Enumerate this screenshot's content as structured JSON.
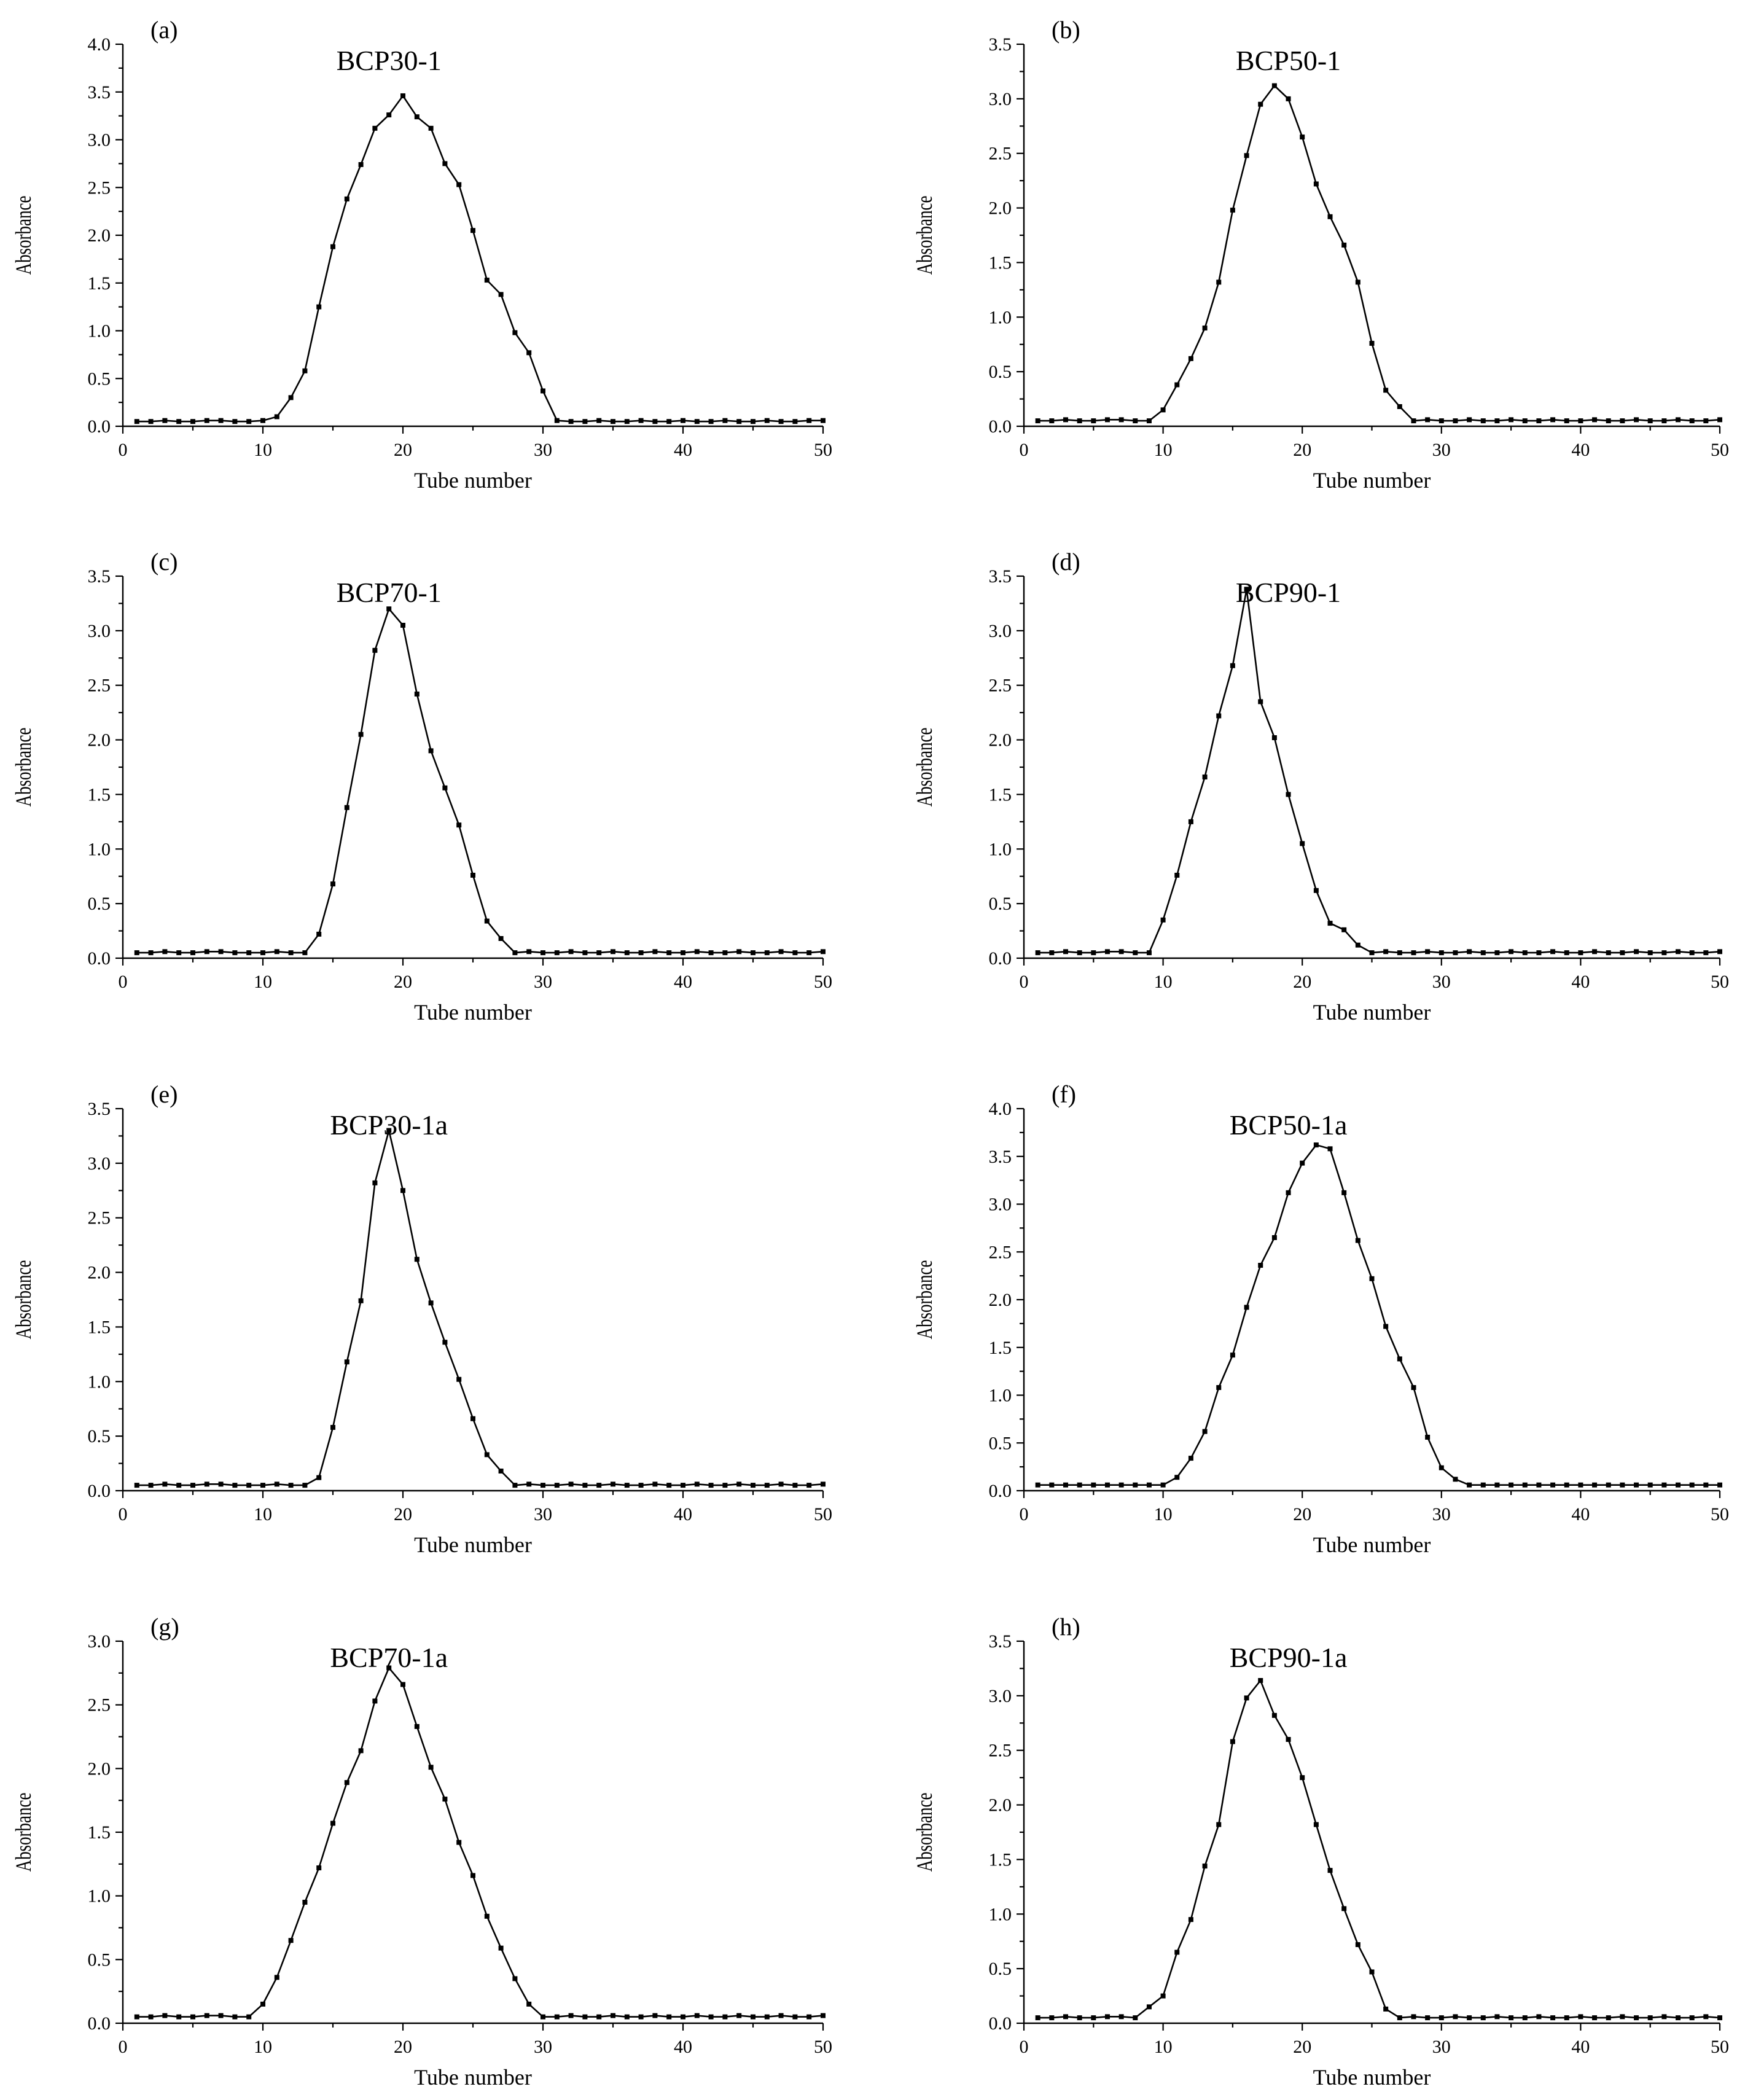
{
  "chart_data": [
    {
      "type": "line",
      "panel": "(a)",
      "title": "BCP30-1",
      "xlabel": "Tube number",
      "ylabel": "Absorbance",
      "xlim": [
        0,
        50
      ],
      "ylim": [
        0,
        4.0
      ],
      "xticks": [
        0,
        10,
        20,
        30,
        40,
        50
      ],
      "yticks": [
        "0.0",
        "0.5",
        "1.0",
        "1.5",
        "2.0",
        "2.5",
        "3.0",
        "3.5",
        "4.0"
      ],
      "x": [
        1,
        2,
        3,
        4,
        5,
        6,
        7,
        8,
        9,
        10,
        11,
        12,
        13,
        14,
        15,
        16,
        17,
        18,
        19,
        20,
        21,
        22,
        23,
        24,
        25,
        26,
        27,
        28,
        29,
        30,
        31,
        32,
        33,
        34,
        35,
        36,
        37,
        38,
        39,
        40,
        41,
        42,
        43,
        44,
        45,
        46,
        47,
        48,
        49,
        50
      ],
      "y": [
        0.05,
        0.05,
        0.06,
        0.05,
        0.05,
        0.06,
        0.06,
        0.05,
        0.05,
        0.06,
        0.1,
        0.3,
        0.58,
        1.25,
        1.88,
        2.38,
        2.74,
        3.12,
        3.26,
        3.46,
        3.24,
        3.12,
        2.75,
        2.53,
        2.05,
        1.53,
        1.38,
        0.98,
        0.77,
        0.37,
        0.06,
        0.05,
        0.05,
        0.06,
        0.05,
        0.05,
        0.06,
        0.05,
        0.05,
        0.06,
        0.05,
        0.05,
        0.06,
        0.05,
        0.05,
        0.06,
        0.05,
        0.05,
        0.06,
        0.06
      ]
    },
    {
      "type": "line",
      "panel": "(b)",
      "title": "BCP50-1",
      "xlabel": "Tube number",
      "ylabel": "Absorbance",
      "xlim": [
        0,
        50
      ],
      "ylim": [
        0,
        3.5
      ],
      "xticks": [
        0,
        10,
        20,
        30,
        40,
        50
      ],
      "yticks": [
        "0.0",
        "0.5",
        "1.0",
        "1.5",
        "2.0",
        "2.5",
        "3.0",
        "3.5"
      ],
      "x": [
        1,
        2,
        3,
        4,
        5,
        6,
        7,
        8,
        9,
        10,
        11,
        12,
        13,
        14,
        15,
        16,
        17,
        18,
        19,
        20,
        21,
        22,
        23,
        24,
        25,
        26,
        27,
        28,
        29,
        30,
        31,
        32,
        33,
        34,
        35,
        36,
        37,
        38,
        39,
        40,
        41,
        42,
        43,
        44,
        45,
        46,
        47,
        48,
        49,
        50
      ],
      "y": [
        0.05,
        0.05,
        0.06,
        0.05,
        0.05,
        0.06,
        0.06,
        0.05,
        0.05,
        0.15,
        0.38,
        0.62,
        0.9,
        1.32,
        1.98,
        2.48,
        2.95,
        3.12,
        3.0,
        2.65,
        2.22,
        1.92,
        1.66,
        1.32,
        0.76,
        0.33,
        0.18,
        0.05,
        0.06,
        0.05,
        0.05,
        0.06,
        0.05,
        0.05,
        0.06,
        0.05,
        0.05,
        0.06,
        0.05,
        0.05,
        0.06,
        0.05,
        0.05,
        0.06,
        0.05,
        0.05,
        0.06,
        0.05,
        0.05,
        0.06
      ]
    },
    {
      "type": "line",
      "panel": "(c)",
      "title": "BCP70-1",
      "xlabel": "Tube number",
      "ylabel": "Absorbance",
      "xlim": [
        0,
        50
      ],
      "ylim": [
        0,
        3.5
      ],
      "xticks": [
        0,
        10,
        20,
        30,
        40,
        50
      ],
      "yticks": [
        "0.0",
        "0.5",
        "1.0",
        "1.5",
        "2.0",
        "2.5",
        "3.0",
        "3.5"
      ],
      "x": [
        1,
        2,
        3,
        4,
        5,
        6,
        7,
        8,
        9,
        10,
        11,
        12,
        13,
        14,
        15,
        16,
        17,
        18,
        19,
        20,
        21,
        22,
        23,
        24,
        25,
        26,
        27,
        28,
        29,
        30,
        31,
        32,
        33,
        34,
        35,
        36,
        37,
        38,
        39,
        40,
        41,
        42,
        43,
        44,
        45,
        46,
        47,
        48,
        49,
        50
      ],
      "y": [
        0.05,
        0.05,
        0.06,
        0.05,
        0.05,
        0.06,
        0.06,
        0.05,
        0.05,
        0.05,
        0.06,
        0.05,
        0.05,
        0.22,
        0.68,
        1.38,
        2.05,
        2.82,
        3.2,
        3.05,
        2.42,
        1.9,
        1.56,
        1.22,
        0.76,
        0.34,
        0.18,
        0.05,
        0.06,
        0.05,
        0.05,
        0.06,
        0.05,
        0.05,
        0.06,
        0.05,
        0.05,
        0.06,
        0.05,
        0.05,
        0.06,
        0.05,
        0.05,
        0.06,
        0.05,
        0.05,
        0.06,
        0.05,
        0.05,
        0.06
      ]
    },
    {
      "type": "line",
      "panel": "(d)",
      "title": "BCP90-1",
      "xlabel": "Tube number",
      "ylabel": "Absorbance",
      "xlim": [
        0,
        50
      ],
      "ylim": [
        0,
        3.5
      ],
      "xticks": [
        0,
        10,
        20,
        30,
        40,
        50
      ],
      "yticks": [
        "0.0",
        "0.5",
        "1.0",
        "1.5",
        "2.0",
        "2.5",
        "3.0",
        "3.5"
      ],
      "x": [
        1,
        2,
        3,
        4,
        5,
        6,
        7,
        8,
        9,
        10,
        11,
        12,
        13,
        14,
        15,
        16,
        17,
        18,
        19,
        20,
        21,
        22,
        23,
        24,
        25,
        26,
        27,
        28,
        29,
        30,
        31,
        32,
        33,
        34,
        35,
        36,
        37,
        38,
        39,
        40,
        41,
        42,
        43,
        44,
        45,
        46,
        47,
        48,
        49,
        50
      ],
      "y": [
        0.05,
        0.05,
        0.06,
        0.05,
        0.05,
        0.06,
        0.06,
        0.05,
        0.05,
        0.35,
        0.76,
        1.25,
        1.66,
        2.22,
        2.68,
        3.38,
        2.35,
        2.02,
        1.5,
        1.05,
        0.62,
        0.32,
        0.26,
        0.12,
        0.05,
        0.06,
        0.05,
        0.05,
        0.06,
        0.05,
        0.05,
        0.06,
        0.05,
        0.05,
        0.06,
        0.05,
        0.05,
        0.06,
        0.05,
        0.05,
        0.06,
        0.05,
        0.05,
        0.06,
        0.05,
        0.05,
        0.06,
        0.05,
        0.05,
        0.06
      ]
    },
    {
      "type": "line",
      "panel": "(e)",
      "title": "BCP30-1a",
      "xlabel": "Tube number",
      "ylabel": "Absorbance",
      "xlim": [
        0,
        50
      ],
      "ylim": [
        0,
        3.5
      ],
      "xticks": [
        0,
        10,
        20,
        30,
        40,
        50
      ],
      "yticks": [
        "0.0",
        "0.5",
        "1.0",
        "1.5",
        "2.0",
        "2.5",
        "3.0",
        "3.5"
      ],
      "x": [
        1,
        2,
        3,
        4,
        5,
        6,
        7,
        8,
        9,
        10,
        11,
        12,
        13,
        14,
        15,
        16,
        17,
        18,
        19,
        20,
        21,
        22,
        23,
        24,
        25,
        26,
        27,
        28,
        29,
        30,
        31,
        32,
        33,
        34,
        35,
        36,
        37,
        38,
        39,
        40,
        41,
        42,
        43,
        44,
        45,
        46,
        47,
        48,
        49,
        50
      ],
      "y": [
        0.05,
        0.05,
        0.06,
        0.05,
        0.05,
        0.06,
        0.06,
        0.05,
        0.05,
        0.05,
        0.06,
        0.05,
        0.05,
        0.12,
        0.58,
        1.18,
        1.74,
        2.82,
        3.3,
        2.75,
        2.12,
        1.72,
        1.36,
        1.02,
        0.66,
        0.33,
        0.18,
        0.05,
        0.06,
        0.05,
        0.05,
        0.06,
        0.05,
        0.05,
        0.06,
        0.05,
        0.05,
        0.06,
        0.05,
        0.05,
        0.06,
        0.05,
        0.05,
        0.06,
        0.05,
        0.05,
        0.06,
        0.05,
        0.05,
        0.06
      ]
    },
    {
      "type": "line",
      "panel": "(f)",
      "title": "BCP50-1a",
      "xlabel": "Tube number",
      "ylabel": "Absorbance",
      "xlim": [
        0,
        50
      ],
      "ylim": [
        0,
        4.0
      ],
      "xticks": [
        0,
        10,
        20,
        30,
        40,
        50
      ],
      "yticks": [
        "0.0",
        "0.5",
        "1.0",
        "1.5",
        "2.0",
        "2.5",
        "3.0",
        "3.5",
        "4.0"
      ],
      "x": [
        1,
        2,
        3,
        4,
        5,
        6,
        7,
        8,
        9,
        10,
        11,
        12,
        13,
        14,
        15,
        16,
        17,
        18,
        19,
        20,
        21,
        22,
        23,
        24,
        25,
        26,
        27,
        28,
        29,
        30,
        31,
        32,
        33,
        34,
        35,
        36,
        37,
        38,
        39,
        40,
        41,
        42,
        43,
        44,
        45,
        46,
        47,
        48,
        49,
        50
      ],
      "y": [
        0.06,
        0.06,
        0.06,
        0.06,
        0.06,
        0.06,
        0.06,
        0.06,
        0.06,
        0.06,
        0.14,
        0.34,
        0.62,
        1.08,
        1.42,
        1.92,
        2.36,
        2.65,
        3.12,
        3.43,
        3.62,
        3.58,
        3.12,
        2.62,
        2.22,
        1.72,
        1.38,
        1.08,
        0.56,
        0.24,
        0.12,
        0.06,
        0.06,
        0.06,
        0.06,
        0.06,
        0.06,
        0.06,
        0.06,
        0.06,
        0.06,
        0.06,
        0.06,
        0.06,
        0.06,
        0.06,
        0.06,
        0.06,
        0.06,
        0.06
      ]
    },
    {
      "type": "line",
      "panel": "(g)",
      "title": "BCP70-1a",
      "xlabel": "Tube number",
      "ylabel": "Absorbance",
      "xlim": [
        0,
        50
      ],
      "ylim": [
        0,
        3.0
      ],
      "xticks": [
        0,
        10,
        20,
        30,
        40,
        50
      ],
      "yticks": [
        "0.0",
        "0.5",
        "1.0",
        "1.5",
        "2.0",
        "2.5",
        "3.0"
      ],
      "x": [
        1,
        2,
        3,
        4,
        5,
        6,
        7,
        8,
        9,
        10,
        11,
        12,
        13,
        14,
        15,
        16,
        17,
        18,
        19,
        20,
        21,
        22,
        23,
        24,
        25,
        26,
        27,
        28,
        29,
        30,
        31,
        32,
        33,
        34,
        35,
        36,
        37,
        38,
        39,
        40,
        41,
        42,
        43,
        44,
        45,
        46,
        47,
        48,
        49,
        50
      ],
      "y": [
        0.05,
        0.05,
        0.06,
        0.05,
        0.05,
        0.06,
        0.06,
        0.05,
        0.05,
        0.15,
        0.36,
        0.65,
        0.95,
        1.22,
        1.57,
        1.89,
        2.14,
        2.53,
        2.79,
        2.66,
        2.33,
        2.01,
        1.76,
        1.42,
        1.16,
        0.84,
        0.59,
        0.35,
        0.15,
        0.05,
        0.05,
        0.06,
        0.05,
        0.05,
        0.06,
        0.05,
        0.05,
        0.06,
        0.05,
        0.05,
        0.06,
        0.05,
        0.05,
        0.06,
        0.05,
        0.05,
        0.06,
        0.05,
        0.05,
        0.06
      ]
    },
    {
      "type": "line",
      "panel": "(h)",
      "title": "BCP90-1a",
      "xlabel": "Tube number",
      "ylabel": "Absorbance",
      "xlim": [
        0,
        50
      ],
      "ylim": [
        0,
        3.5
      ],
      "xticks": [
        0,
        10,
        20,
        30,
        40,
        50
      ],
      "yticks": [
        "0.0",
        "0.5",
        "1.0",
        "1.5",
        "2.0",
        "2.5",
        "3.0",
        "3.5"
      ],
      "x": [
        1,
        2,
        3,
        4,
        5,
        6,
        7,
        8,
        9,
        10,
        11,
        12,
        13,
        14,
        15,
        16,
        17,
        18,
        19,
        20,
        21,
        22,
        23,
        24,
        25,
        26,
        27,
        28,
        29,
        30,
        31,
        32,
        33,
        34,
        35,
        36,
        37,
        38,
        39,
        40,
        41,
        42,
        43,
        44,
        45,
        46,
        47,
        48,
        49,
        50
      ],
      "y": [
        0.05,
        0.05,
        0.06,
        0.05,
        0.05,
        0.06,
        0.06,
        0.05,
        0.15,
        0.25,
        0.65,
        0.95,
        1.44,
        1.82,
        2.58,
        2.98,
        3.14,
        2.82,
        2.6,
        2.25,
        1.82,
        1.4,
        1.05,
        0.72,
        0.47,
        0.13,
        0.05,
        0.06,
        0.05,
        0.05,
        0.06,
        0.05,
        0.05,
        0.06,
        0.05,
        0.05,
        0.06,
        0.05,
        0.05,
        0.06,
        0.05,
        0.05,
        0.06,
        0.05,
        0.05,
        0.06,
        0.05,
        0.05,
        0.06,
        0.05
      ]
    }
  ]
}
